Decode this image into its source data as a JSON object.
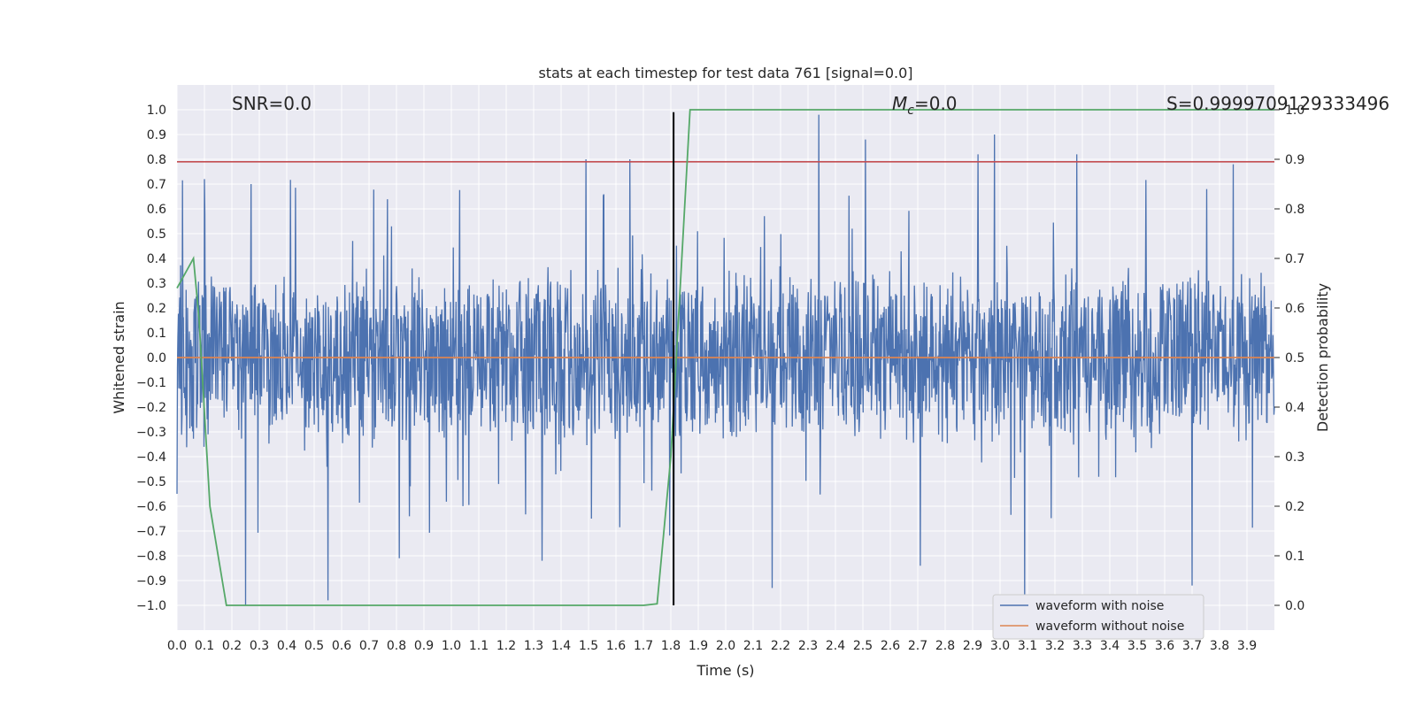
{
  "chart_data": {
    "type": "line",
    "title": "stats at each timestep for test data 761 [signal=0.0]",
    "xlabel": "Time (s)",
    "ylabel": "Whitened strain",
    "y2label": "Detection probability",
    "xlim": [
      0.0,
      4.0
    ],
    "ylim": [
      -1.1,
      1.1
    ],
    "y2lim": [
      -0.05,
      1.05
    ],
    "x_ticks": [
      "0.0",
      "0.1",
      "0.2",
      "0.3",
      "0.4",
      "0.5",
      "0.6",
      "0.7",
      "0.8",
      "0.9",
      "1.0",
      "1.1",
      "1.2",
      "1.3",
      "1.4",
      "1.5",
      "1.6",
      "1.7",
      "1.8",
      "1.9",
      "2.0",
      "2.1",
      "2.2",
      "2.3",
      "2.4",
      "2.5",
      "2.6",
      "2.7",
      "2.8",
      "2.9",
      "3.0",
      "3.1",
      "3.2",
      "3.3",
      "3.4",
      "3.5",
      "3.6",
      "3.7",
      "3.8",
      "3.9"
    ],
    "y_ticks": [
      "1.0",
      "0.9",
      "0.8",
      "0.7",
      "0.6",
      "0.5",
      "0.4",
      "0.3",
      "0.2",
      "0.1",
      "0.0",
      "−0.1",
      "−0.2",
      "−0.3",
      "−0.4",
      "−0.5",
      "−0.6",
      "−0.7",
      "−0.8",
      "−0.9",
      "−1.0"
    ],
    "y2_ticks": [
      "1.0",
      "0.9",
      "0.8",
      "0.7",
      "0.6",
      "0.5",
      "0.4",
      "0.3",
      "0.2",
      "0.1",
      "0.0"
    ],
    "annotations": {
      "snr": "SNR=0.0",
      "mc_symbol": "M",
      "mc_subscript": "c",
      "mc_value": "=0.0",
      "s": "S=0.9999709129333496"
    },
    "series": [
      {
        "name": "waveform with noise",
        "color": "#4c72b0",
        "description": "dense noisy whitened strain, roughly within +/-0.4 with spikes to about +/-1.0",
        "envelope": {
          "typical": 0.38,
          "peaks": [
            {
              "x": 0.0,
              "y": -0.55
            },
            {
              "x": 0.1,
              "y": 0.72
            },
            {
              "x": 0.25,
              "y": -1.0
            },
            {
              "x": 0.27,
              "y": 0.7
            },
            {
              "x": 0.55,
              "y": -0.98
            },
            {
              "x": 0.81,
              "y": -0.81
            },
            {
              "x": 1.33,
              "y": -0.82
            },
            {
              "x": 1.49,
              "y": 0.8
            },
            {
              "x": 1.51,
              "y": -0.65
            },
            {
              "x": 1.65,
              "y": 0.8
            },
            {
              "x": 1.81,
              "y": -0.77
            },
            {
              "x": 2.17,
              "y": -0.93
            },
            {
              "x": 2.34,
              "y": 0.98
            },
            {
              "x": 2.51,
              "y": 0.88
            },
            {
              "x": 2.71,
              "y": -0.84
            },
            {
              "x": 2.92,
              "y": 0.82
            },
            {
              "x": 2.98,
              "y": 0.9
            },
            {
              "x": 3.09,
              "y": -0.98
            },
            {
              "x": 3.28,
              "y": 0.82
            },
            {
              "x": 3.7,
              "y": -0.92
            },
            {
              "x": 3.85,
              "y": 0.78
            }
          ]
        }
      },
      {
        "name": "waveform without noise",
        "color": "#dd8452",
        "x": [
          0.0,
          4.0
        ],
        "y": [
          0.0,
          0.0
        ]
      },
      {
        "name": "detection probability",
        "color": "#55a868",
        "axis": "right",
        "x": [
          0.0,
          0.06,
          0.08,
          0.12,
          0.18,
          0.25,
          0.5,
          1.0,
          1.5,
          1.7,
          1.75,
          1.8,
          1.87,
          2.0,
          3.0,
          4.0
        ],
        "y": [
          0.64,
          0.7,
          0.58,
          0.2,
          0.0,
          0.0,
          0.0,
          0.0,
          0.0,
          0.0,
          0.003,
          0.3,
          1.0,
          1.0,
          1.0,
          1.0
        ]
      }
    ],
    "threshold_line": {
      "y": 0.79,
      "color": "#c44e52"
    },
    "marker_line": {
      "x": 1.81,
      "y_range": [
        -1.0,
        0.99
      ],
      "color": "#000000"
    },
    "legend": {
      "position": "lower-right",
      "entries": [
        "waveform with noise",
        "waveform without noise"
      ]
    },
    "grid": true,
    "style": {
      "background": "#eaeaf2",
      "grid_color": "#ffffff"
    }
  }
}
